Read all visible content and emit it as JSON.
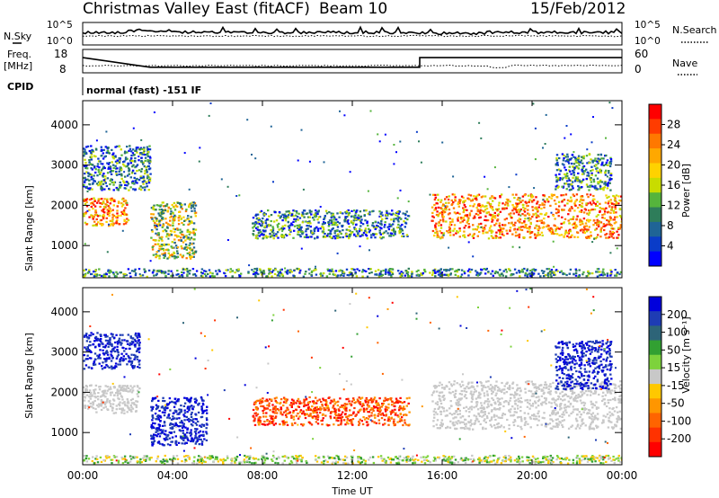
{
  "header": {
    "title": "Christmas Valley East (fitACF)",
    "beam": "Beam 10",
    "date": "15/Feb/2012"
  },
  "noise_panel": {
    "left_label": "N.Sky",
    "right_label": "N.Search",
    "left_ticks": [
      "10^5",
      "10^0"
    ],
    "right_ticks": [
      "10^5",
      "10^0"
    ]
  },
  "freq_panel": {
    "left_label_1": "Freq.",
    "left_label_2": "[MHz]",
    "right_label": "Nave",
    "left_ticks": [
      "18",
      "8"
    ],
    "right_ticks": [
      "60",
      "0"
    ],
    "freq_steps_mhz": [
      [
        0,
        14.5
      ],
      [
        3.0,
        10.4
      ],
      [
        15.0,
        10.4
      ],
      [
        15.0,
        14.5
      ],
      [
        24.0,
        14.5
      ]
    ]
  },
  "cpid": {
    "label": "CPID",
    "text": "normal (fast) -151 IF"
  },
  "chart_data": [
    {
      "type": "heatmap",
      "title": "Power",
      "ylabel": "Slant Range [km]",
      "xlabel": "",
      "x_ticks": [
        "00:00",
        "04:00",
        "08:00",
        "12:00",
        "16:00",
        "20:00",
        "00:00"
      ],
      "y_ticks": [
        "1000",
        "2000",
        "3000",
        "4000"
      ],
      "ylim": [
        200,
        4600
      ],
      "colorbar": {
        "label": "Power [dB]",
        "ticks": [
          "28",
          "24",
          "20",
          "16",
          "12",
          "8",
          "4"
        ],
        "colors": [
          "#ff0000",
          "#ff3c00",
          "#ff7800",
          "#ffa800",
          "#ffd200",
          "#c8dc00",
          "#55b43c",
          "#2e7d5a",
          "#1f6496",
          "#0a3cc8",
          "#0000ff"
        ]
      },
      "echo_regions": [
        {
          "t": [
            0.0,
            2.0
          ],
          "range_km": [
            1500,
            2200
          ],
          "power": "high"
        },
        {
          "t": [
            0.0,
            3.0
          ],
          "range_km": [
            2400,
            3500
          ],
          "power": "low"
        },
        {
          "t": [
            3.0,
            5.0
          ],
          "range_km": [
            700,
            2100
          ],
          "power": "medium"
        },
        {
          "t": [
            7.5,
            14.5
          ],
          "range_km": [
            1200,
            1900
          ],
          "power": "low"
        },
        {
          "t": [
            15.5,
            24.0
          ],
          "range_km": [
            1200,
            2300
          ],
          "power": "high"
        },
        {
          "t": [
            21.0,
            23.5
          ],
          "range_km": [
            2400,
            3300
          ],
          "power": "low"
        },
        {
          "t": [
            0.0,
            24.0
          ],
          "range_km": [
            250,
            450
          ],
          "power": "low"
        }
      ]
    },
    {
      "type": "heatmap",
      "title": "Velocity",
      "ylabel": "Slant Range [km]",
      "xlabel": "Time UT",
      "x_ticks": [
        "00:00",
        "04:00",
        "08:00",
        "12:00",
        "16:00",
        "20:00",
        "00:00"
      ],
      "y_ticks": [
        "1000",
        "2000",
        "3000",
        "4000"
      ],
      "ylim": [
        200,
        4600
      ],
      "colorbar": {
        "label": "Velocity [m s⁻¹]",
        "ticks": [
          "200",
          "100",
          "50",
          "15",
          "-15",
          "-50",
          "-100",
          "-200"
        ],
        "colors": [
          "#0000dc",
          "#1e3cb4",
          "#2d6478",
          "#32a032",
          "#7dd23c",
          "#c8c8c8",
          "#ffc800",
          "#ff9600",
          "#ff6400",
          "#ff3200",
          "#ff0000"
        ]
      },
      "echo_regions": [
        {
          "t": [
            0.0,
            2.5
          ],
          "range_km": [
            1500,
            2200
          ],
          "velocity": "ground scatter"
        },
        {
          "t": [
            0.0,
            2.5
          ],
          "range_km": [
            2600,
            3500
          ],
          "velocity": "toward"
        },
        {
          "t": [
            3.0,
            5.5
          ],
          "range_km": [
            700,
            1900
          ],
          "velocity": "toward"
        },
        {
          "t": [
            7.5,
            14.5
          ],
          "range_km": [
            1200,
            1900
          ],
          "velocity": "away"
        },
        {
          "t": [
            15.5,
            24.0
          ],
          "range_km": [
            1100,
            2300
          ],
          "velocity": "ground scatter"
        },
        {
          "t": [
            21.0,
            23.5
          ],
          "range_km": [
            2100,
            3300
          ],
          "velocity": "toward"
        },
        {
          "t": [
            0.0,
            24.0
          ],
          "range_km": [
            250,
            450
          ],
          "velocity": "low"
        }
      ]
    }
  ]
}
